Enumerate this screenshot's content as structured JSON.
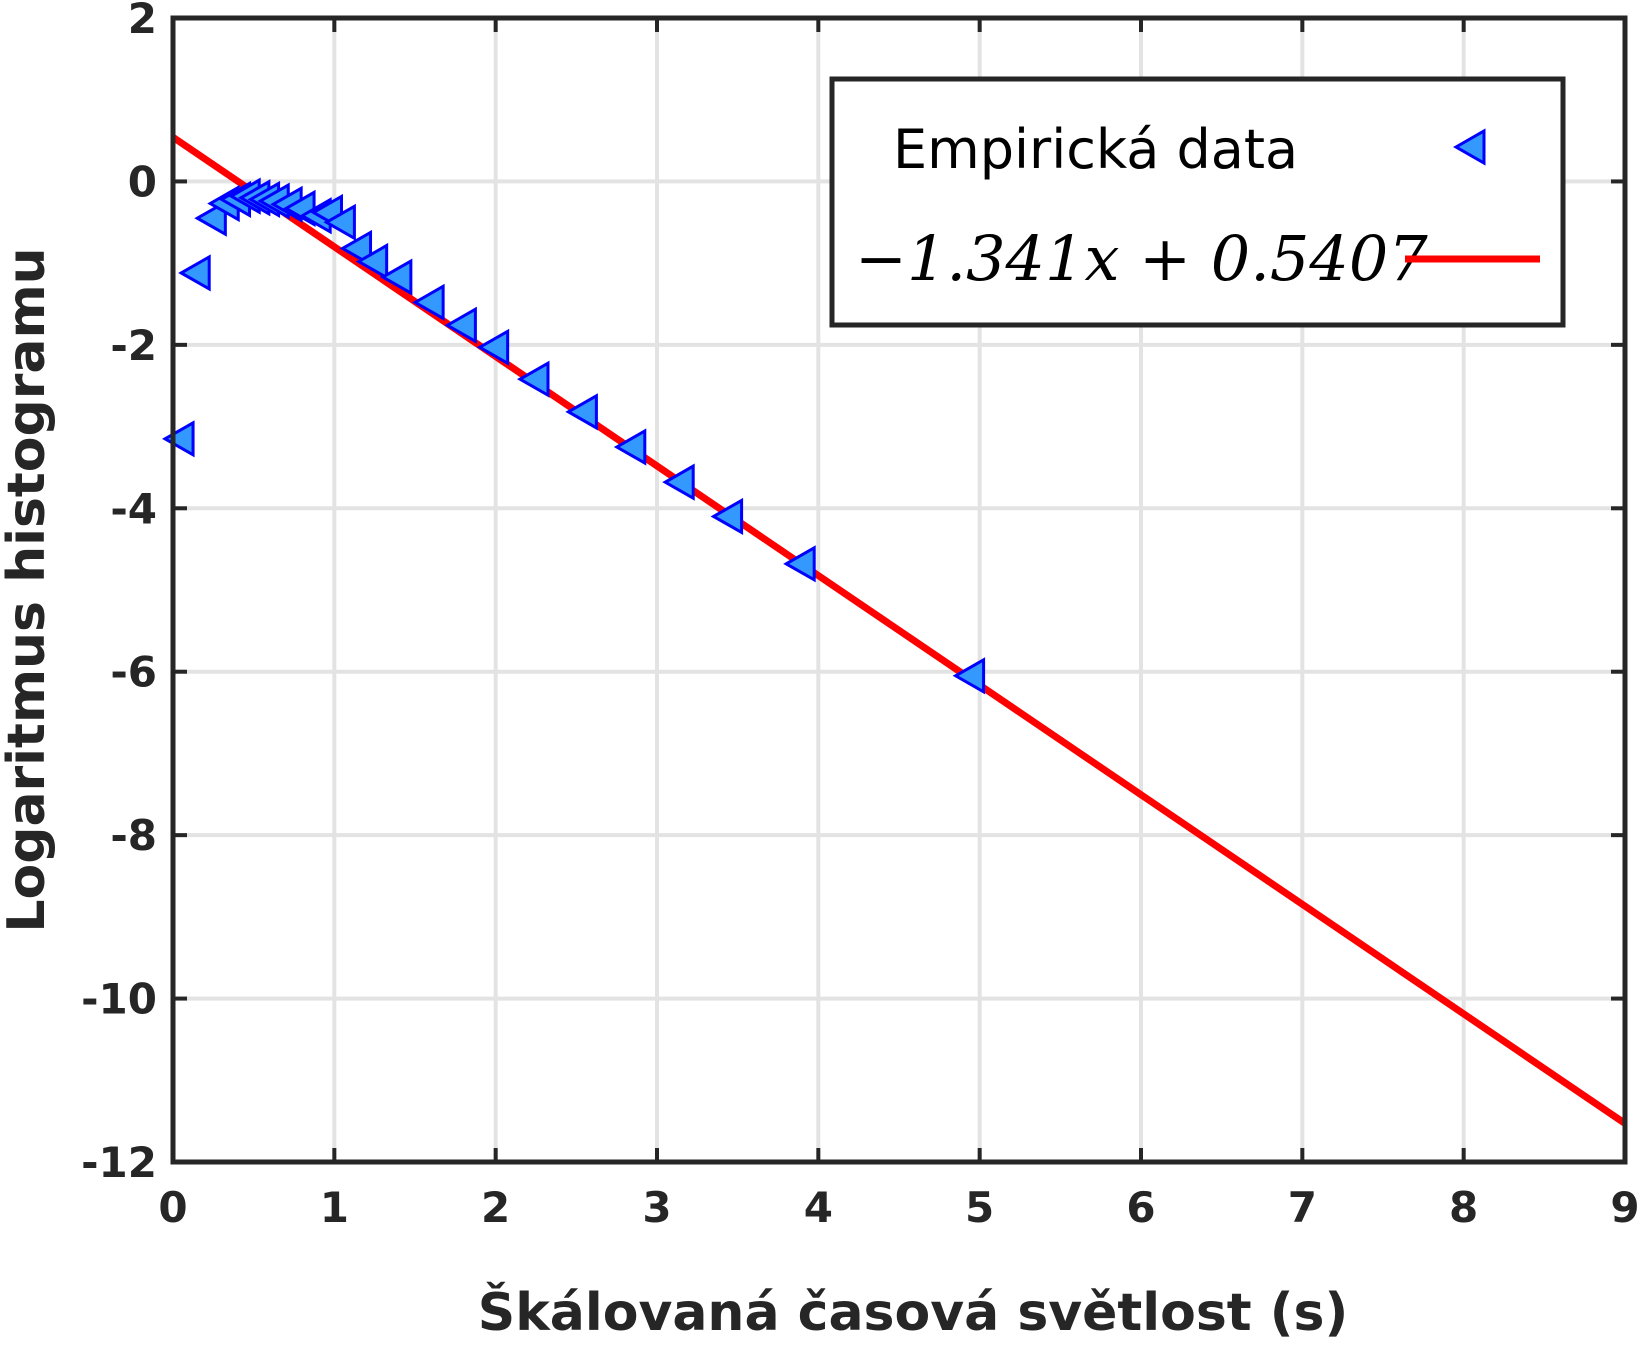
{
  "chart_data": {
    "type": "scatter",
    "xlabel": "Škálovaná časová světlost (s)",
    "ylabel": "Logaritmus histogramu",
    "xlim": [
      0,
      9
    ],
    "ylim": [
      -12,
      2
    ],
    "xticks": [
      "0",
      "1",
      "2",
      "3",
      "4",
      "5",
      "6",
      "7",
      "8",
      "9"
    ],
    "yticks": [
      "2",
      "0",
      "-2",
      "-4",
      "-6",
      "-8",
      "-10",
      "-12"
    ],
    "grid": true,
    "legend_position": "top-right",
    "series": [
      {
        "name": "Empirická data",
        "kind": "scatter",
        "marker": "triangle-left",
        "color": "#3399ff",
        "edge_color": "#0000ff",
        "x": [
          0.05,
          0.15,
          0.25,
          0.33,
          0.4,
          0.46,
          0.52,
          0.58,
          0.64,
          0.72,
          0.8,
          0.9,
          0.97,
          1.05,
          1.15,
          1.25,
          1.4,
          1.6,
          1.8,
          2.0,
          2.25,
          2.55,
          2.85,
          3.15,
          3.45,
          3.9,
          4.95
        ],
        "y": [
          -3.15,
          -1.12,
          -0.45,
          -0.27,
          -0.22,
          -0.18,
          -0.2,
          -0.22,
          -0.24,
          -0.28,
          -0.33,
          -0.42,
          -0.38,
          -0.5,
          -0.82,
          -0.98,
          -1.17,
          -1.48,
          -1.76,
          -2.03,
          -2.42,
          -2.82,
          -3.25,
          -3.68,
          -4.1,
          -4.68,
          -6.05
        ]
      },
      {
        "name": "−1.341x + 0.5407",
        "kind": "line",
        "color": "#ff0000",
        "slope": -1.341,
        "intercept": 0.5407,
        "x": [
          0,
          9
        ],
        "y": [
          0.5407,
          -11.5283
        ]
      }
    ]
  }
}
